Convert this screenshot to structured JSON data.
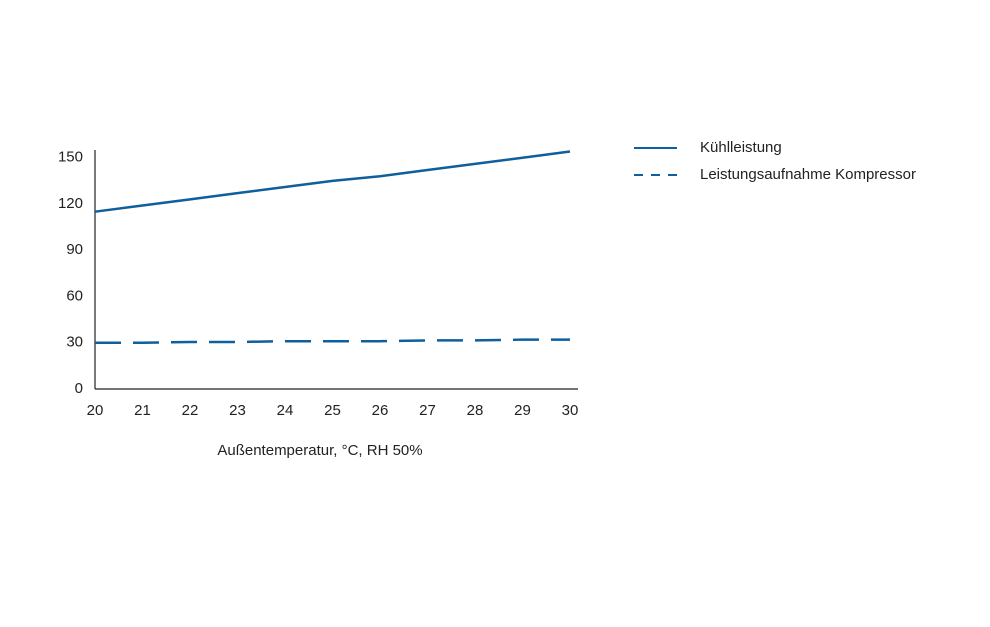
{
  "chart_data": {
    "type": "line",
    "x_label": "Außentemperatur, °C, RH 50%",
    "x": [
      20,
      21,
      22,
      23,
      24,
      25,
      26,
      27,
      28,
      29,
      30
    ],
    "series": [
      {
        "name": "Kühlleistung",
        "color": "#0e5f9c",
        "dash": "solid",
        "values": [
          115,
          119,
          123,
          127,
          131,
          135,
          138,
          142,
          146,
          150,
          154
        ]
      },
      {
        "name": "Leistungsaufnahme Kompressor",
        "color": "#0e5f9c",
        "dash": "dashed",
        "values": [
          30,
          30,
          30.5,
          30.5,
          31,
          31,
          31,
          31.5,
          31.5,
          32,
          32
        ]
      }
    ],
    "xlim": [
      20,
      30
    ],
    "ylim": [
      0,
      155
    ],
    "xticks": [
      20,
      21,
      22,
      23,
      24,
      25,
      26,
      27,
      28,
      29,
      30
    ],
    "yticks": [
      0,
      30,
      60,
      90,
      120,
      150
    ],
    "grid": false,
    "legend": "right"
  }
}
